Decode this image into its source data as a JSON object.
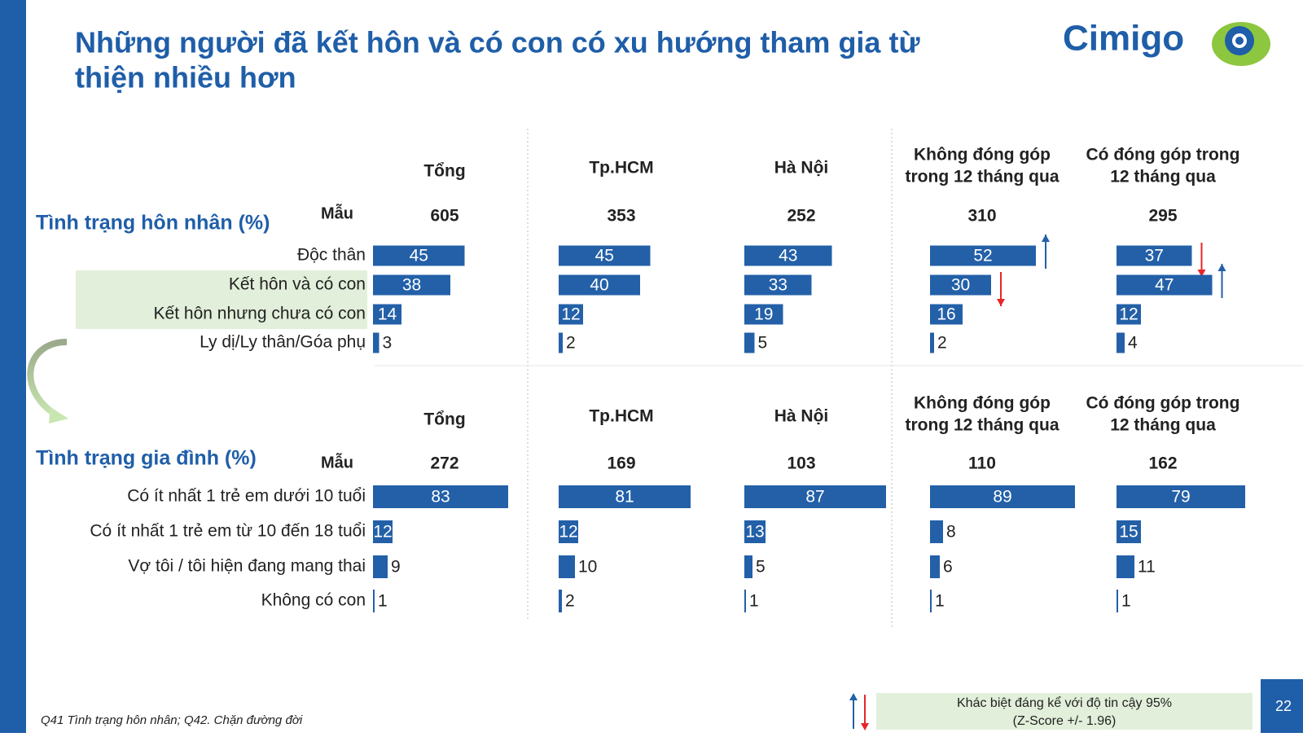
{
  "header": {
    "title_lines": [
      "Những người đã kết hôn và có con có xu hướng tham gia từ",
      "thiện nhiều hơn"
    ],
    "logo": "Cimigo"
  },
  "sections": [
    {
      "title": "Tình trạng hôn nhân (%)",
      "sample_label": "Mẫu",
      "categories": [
        "Độc thân",
        "Kết hôn và có con",
        "Kết hôn nhưng chưa có con",
        "Ly dị/Ly thân/Góa phụ"
      ],
      "highlight": [
        1,
        2
      ],
      "groups": [
        {
          "name": [
            "Tổng"
          ],
          "sample": 605,
          "values": [
            45,
            38,
            14,
            3
          ],
          "significance": [
            null,
            null,
            null,
            null
          ]
        },
        {
          "name": [
            "Tp.HCM"
          ],
          "sample": 353,
          "values": [
            45,
            40,
            12,
            2
          ],
          "significance": [
            null,
            null,
            null,
            null
          ]
        },
        {
          "name": [
            "Hà Nội"
          ],
          "sample": 252,
          "values": [
            43,
            33,
            19,
            5
          ],
          "significance": [
            null,
            null,
            null,
            null
          ]
        },
        {
          "name": [
            "Không đóng góp",
            "trong 12 tháng qua"
          ],
          "sample": 310,
          "values": [
            52,
            30,
            16,
            2
          ],
          "significance": [
            "up",
            "down",
            null,
            null
          ]
        },
        {
          "name": [
            "Có đóng góp trong",
            "12 tháng qua"
          ],
          "sample": 295,
          "values": [
            37,
            47,
            12,
            4
          ],
          "significance": [
            "down",
            "up",
            null,
            null
          ]
        }
      ]
    },
    {
      "title": "Tình trạng gia đình (%)",
      "sample_label": "Mẫu",
      "categories": [
        "Có ít nhất 1 trẻ em dưới 10 tuổi",
        "Có ít nhất 1 trẻ em từ 10 đến 18 tuổi",
        "Vợ tôi / tôi hiện đang mang thai",
        "Không có con"
      ],
      "highlight": [],
      "groups": [
        {
          "name": [
            "Tổng"
          ],
          "sample": 272,
          "values": [
            83,
            12,
            9,
            1
          ],
          "significance": [
            null,
            null,
            null,
            null
          ]
        },
        {
          "name": [
            "Tp.HCM"
          ],
          "sample": 169,
          "values": [
            81,
            12,
            10,
            2
          ],
          "significance": [
            null,
            null,
            null,
            null
          ]
        },
        {
          "name": [
            "Hà Nội"
          ],
          "sample": 103,
          "values": [
            87,
            13,
            5,
            1
          ],
          "significance": [
            null,
            null,
            null,
            null
          ]
        },
        {
          "name": [
            "Không đóng góp",
            "trong 12 tháng qua"
          ],
          "sample": 110,
          "values": [
            89,
            8,
            6,
            1
          ],
          "significance": [
            null,
            null,
            null,
            null
          ]
        },
        {
          "name": [
            "Có đóng góp trong",
            "12 tháng qua"
          ],
          "sample": 162,
          "values": [
            79,
            15,
            11,
            1
          ],
          "significance": [
            null,
            null,
            null,
            null
          ]
        }
      ]
    }
  ],
  "colors": {
    "bar": "#2360a8",
    "up": "#2360a8",
    "down": "#e8262a"
  },
  "legend": {
    "lines": [
      "Khác biệt đáng kể với độ tin cậy 95%",
      "(Z-Score +/- 1.96)"
    ]
  },
  "footnote": "Q41 Tình trạng hôn nhân; Q42. Chặn đường đời",
  "page_number": 22
}
